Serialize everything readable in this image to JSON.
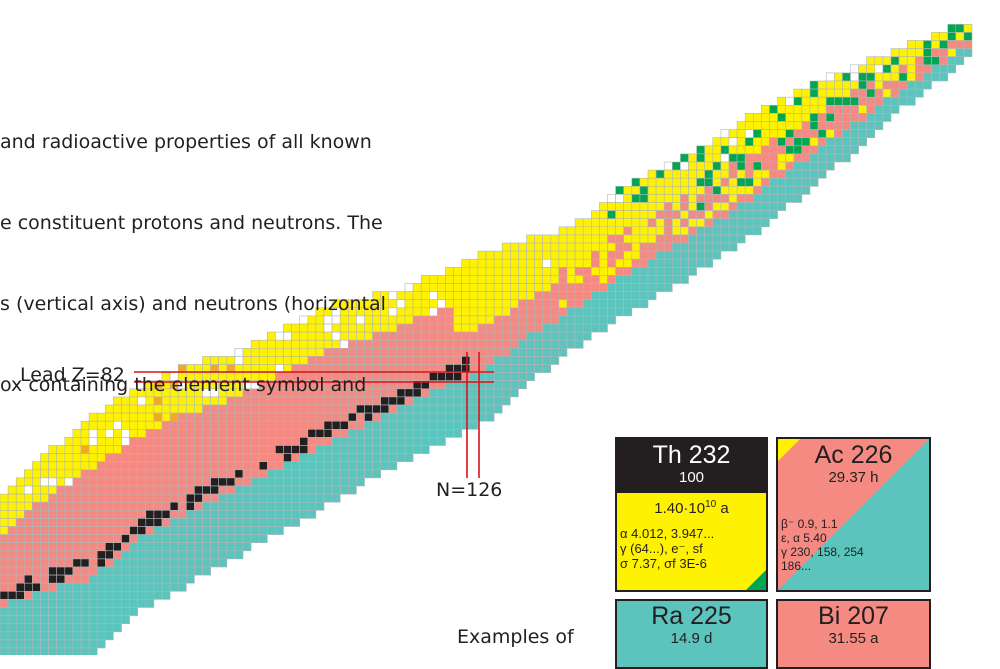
{
  "intro": {
    "lines": [
      "and radioactive properties of all known",
      "e constituent protons and neutrons. The",
      "s (vertical axis) and neutrons (horizontal",
      "ox containing the element symbol and"
    ]
  },
  "annotations": {
    "lead_label": "Lead Z=82",
    "n_label": "N=126",
    "examples_label": "Examples of"
  },
  "colors": {
    "stable": "#231f20",
    "beta_minus": "#5bc4bd",
    "beta_plus_ec": "#f48a82",
    "alpha": "#fff200",
    "spontaneous_fission": "#00a651",
    "proton_emission": "#f7a823",
    "unknown": "#ffffff",
    "grid": "#b0b6b8",
    "marker": "#d7141a"
  },
  "cards": [
    {
      "symbol": "Th 232",
      "abundance": "100",
      "half_life_base": "1.40·10",
      "half_life_exp": "10",
      "half_life_unit": " a",
      "decay": [
        "α 4.012, 3.947...",
        "γ (64...), e⁻, sf",
        "σ 7.37, σf 3E-6"
      ]
    },
    {
      "symbol": "Ac 226",
      "half_life": "29.37 h",
      "decay": [
        "β⁻ 0.9, 1.1",
        "ε, α 5.40",
        "γ 230, 158, 254",
        "186..."
      ]
    },
    {
      "symbol": "Ra 225",
      "half_life": "14.9 d"
    },
    {
      "symbol": "Bi 207",
      "half_life": "31.55 a"
    }
  ]
}
